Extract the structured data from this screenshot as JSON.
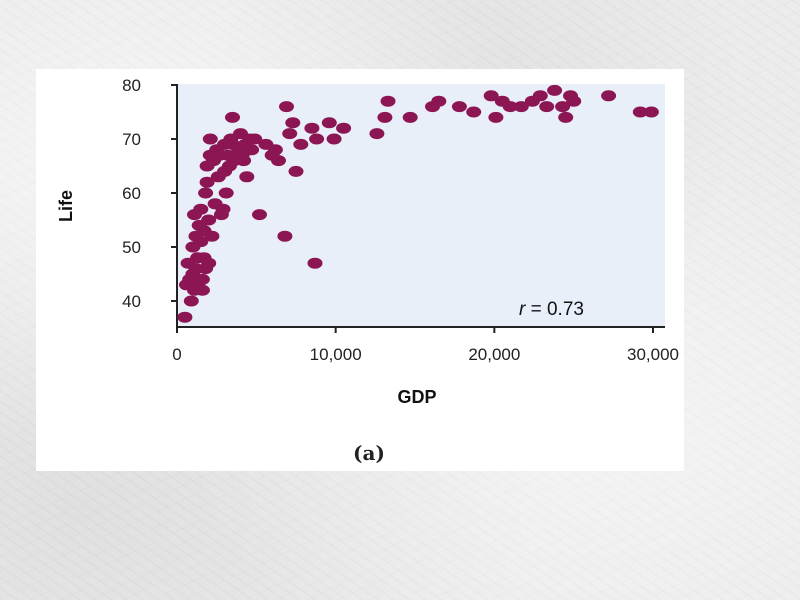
{
  "chart_data": {
    "type": "scatter",
    "xlabel": "GDP",
    "ylabel": "Life",
    "caption": "(a)",
    "annotation": {
      "symbol": "r",
      "text": " = 0.73"
    },
    "xlim": [
      0,
      30500
    ],
    "ylim": [
      35,
      81
    ],
    "xticks": [
      0,
      10000,
      20000,
      30000
    ],
    "xtick_labels": [
      "0",
      "10,000",
      "20,000",
      "30,000"
    ],
    "yticks": [
      40,
      50,
      60,
      70,
      80
    ],
    "ytick_labels": [
      "40",
      "50",
      "60",
      "70",
      "80"
    ],
    "grid": false,
    "colors": {
      "point": "#8c1654",
      "plot_background": "#e9eff9",
      "axis": "#222222"
    },
    "points": [
      [
        500,
        37
      ],
      [
        600,
        43
      ],
      [
        700,
        47
      ],
      [
        800,
        44
      ],
      [
        900,
        40
      ],
      [
        1000,
        45
      ],
      [
        1000,
        50
      ],
      [
        1100,
        42
      ],
      [
        1100,
        56
      ],
      [
        1200,
        46
      ],
      [
        1200,
        52
      ],
      [
        1300,
        48
      ],
      [
        1300,
        43
      ],
      [
        1400,
        54
      ],
      [
        1500,
        57
      ],
      [
        1500,
        51
      ],
      [
        1600,
        44
      ],
      [
        1600,
        42
      ],
      [
        1700,
        48
      ],
      [
        1700,
        53
      ],
      [
        1800,
        46
      ],
      [
        1800,
        60
      ],
      [
        1900,
        62
      ],
      [
        1900,
        65
      ],
      [
        2000,
        47
      ],
      [
        2000,
        55
      ],
      [
        2100,
        67
      ],
      [
        2100,
        70
      ],
      [
        2200,
        52
      ],
      [
        2300,
        66
      ],
      [
        2400,
        58
      ],
      [
        2500,
        68
      ],
      [
        2600,
        63
      ],
      [
        2700,
        67
      ],
      [
        2800,
        56
      ],
      [
        2900,
        57
      ],
      [
        3000,
        64
      ],
      [
        3000,
        69
      ],
      [
        3100,
        60
      ],
      [
        3200,
        67
      ],
      [
        3300,
        65
      ],
      [
        3400,
        70
      ],
      [
        3500,
        69
      ],
      [
        3500,
        74
      ],
      [
        3600,
        66
      ],
      [
        3800,
        67
      ],
      [
        3900,
        68
      ],
      [
        4000,
        71
      ],
      [
        4100,
        67
      ],
      [
        4200,
        66
      ],
      [
        4300,
        69
      ],
      [
        4400,
        63
      ],
      [
        4600,
        70
      ],
      [
        4700,
        68
      ],
      [
        4900,
        70
      ],
      [
        5200,
        56
      ],
      [
        5600,
        69
      ],
      [
        6000,
        67
      ],
      [
        6200,
        68
      ],
      [
        6400,
        66
      ],
      [
        6800,
        52
      ],
      [
        6900,
        76
      ],
      [
        7100,
        71
      ],
      [
        7300,
        73
      ],
      [
        7500,
        64
      ],
      [
        7800,
        69
      ],
      [
        8500,
        72
      ],
      [
        8700,
        47
      ],
      [
        8800,
        70
      ],
      [
        9600,
        73
      ],
      [
        9900,
        70
      ],
      [
        10500,
        72
      ],
      [
        12600,
        71
      ],
      [
        13100,
        74
      ],
      [
        13300,
        77
      ],
      [
        14700,
        74
      ],
      [
        16100,
        76
      ],
      [
        16500,
        77
      ],
      [
        17800,
        76
      ],
      [
        18700,
        75
      ],
      [
        19800,
        78
      ],
      [
        20100,
        74
      ],
      [
        20500,
        77
      ],
      [
        21000,
        76
      ],
      [
        21700,
        76
      ],
      [
        22400,
        77
      ],
      [
        22900,
        78
      ],
      [
        23300,
        76
      ],
      [
        23800,
        79
      ],
      [
        24300,
        76
      ],
      [
        24500,
        74
      ],
      [
        24800,
        78
      ],
      [
        25000,
        77
      ],
      [
        27200,
        78
      ],
      [
        29200,
        75
      ],
      [
        29900,
        75
      ]
    ]
  }
}
